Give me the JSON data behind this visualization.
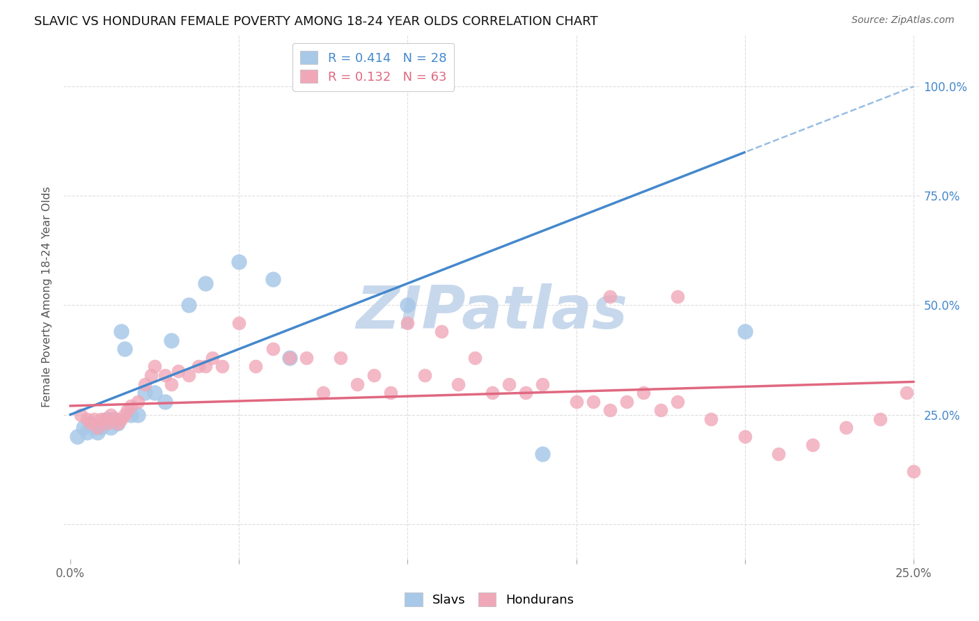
{
  "title": "SLAVIC VS HONDURAN FEMALE POVERTY AMONG 18-24 YEAR OLDS CORRELATION CHART",
  "source": "Source: ZipAtlas.com",
  "ylabel": "Female Poverty Among 18-24 Year Olds",
  "xlim": [
    -0.002,
    0.252
  ],
  "ylim": [
    -0.08,
    1.12
  ],
  "xticks": [
    0.0,
    0.05,
    0.1,
    0.15,
    0.2,
    0.25
  ],
  "yticks": [
    0.0,
    0.25,
    0.5,
    0.75,
    1.0
  ],
  "right_ytick_labels": [
    "",
    "25.0%",
    "50.0%",
    "75.0%",
    "100.0%"
  ],
  "xtick_labels": [
    "0.0%",
    "",
    "",
    "",
    "",
    "25.0%"
  ],
  "slavs_color": "#A8C8E8",
  "hondurans_color": "#F0A8B8",
  "slavs_line_color": "#4488CC",
  "hondurans_line_color": "#E06880",
  "background_color": "#FFFFFF",
  "grid_color": "#DDDDDD",
  "watermark_color": "#C8D8EC",
  "legend_slavs_R": "0.414",
  "legend_slavs_N": "28",
  "legend_hondurans_R": "0.132",
  "legend_hondurans_N": "63",
  "slavs_x": [
    0.002,
    0.004,
    0.005,
    0.006,
    0.007,
    0.008,
    0.009,
    0.01,
    0.011,
    0.012,
    0.013,
    0.014,
    0.015,
    0.016,
    0.018,
    0.02,
    0.022,
    0.025,
    0.028,
    0.03,
    0.035,
    0.04,
    0.05,
    0.06,
    0.065,
    0.1,
    0.14,
    0.2
  ],
  "slavs_y": [
    0.2,
    0.22,
    0.21,
    0.23,
    0.22,
    0.21,
    0.22,
    0.23,
    0.24,
    0.22,
    0.24,
    0.23,
    0.44,
    0.4,
    0.25,
    0.25,
    0.3,
    0.3,
    0.28,
    0.42,
    0.5,
    0.55,
    0.6,
    0.56,
    0.38,
    0.5,
    0.16,
    0.44
  ],
  "hondurans_x": [
    0.003,
    0.005,
    0.006,
    0.007,
    0.008,
    0.009,
    0.01,
    0.011,
    0.012,
    0.013,
    0.014,
    0.015,
    0.016,
    0.017,
    0.018,
    0.02,
    0.022,
    0.024,
    0.025,
    0.028,
    0.03,
    0.032,
    0.035,
    0.038,
    0.04,
    0.042,
    0.045,
    0.05,
    0.055,
    0.06,
    0.065,
    0.07,
    0.075,
    0.08,
    0.085,
    0.09,
    0.095,
    0.1,
    0.105,
    0.11,
    0.115,
    0.12,
    0.125,
    0.13,
    0.135,
    0.14,
    0.15,
    0.155,
    0.16,
    0.165,
    0.17,
    0.175,
    0.18,
    0.19,
    0.2,
    0.21,
    0.22,
    0.23,
    0.24,
    0.248,
    0.25,
    0.16,
    0.18
  ],
  "hondurans_y": [
    0.25,
    0.24,
    0.23,
    0.24,
    0.22,
    0.24,
    0.24,
    0.23,
    0.25,
    0.24,
    0.23,
    0.24,
    0.25,
    0.26,
    0.27,
    0.28,
    0.32,
    0.34,
    0.36,
    0.34,
    0.32,
    0.35,
    0.34,
    0.36,
    0.36,
    0.38,
    0.36,
    0.46,
    0.36,
    0.4,
    0.38,
    0.38,
    0.3,
    0.38,
    0.32,
    0.34,
    0.3,
    0.46,
    0.34,
    0.44,
    0.32,
    0.38,
    0.3,
    0.32,
    0.3,
    0.32,
    0.28,
    0.28,
    0.26,
    0.28,
    0.3,
    0.26,
    0.28,
    0.24,
    0.2,
    0.16,
    0.18,
    0.22,
    0.24,
    0.3,
    0.12,
    0.52,
    0.52
  ],
  "slavs_regression": [
    0.25,
    3.0
  ],
  "hondurans_regression": [
    0.27,
    0.22
  ]
}
